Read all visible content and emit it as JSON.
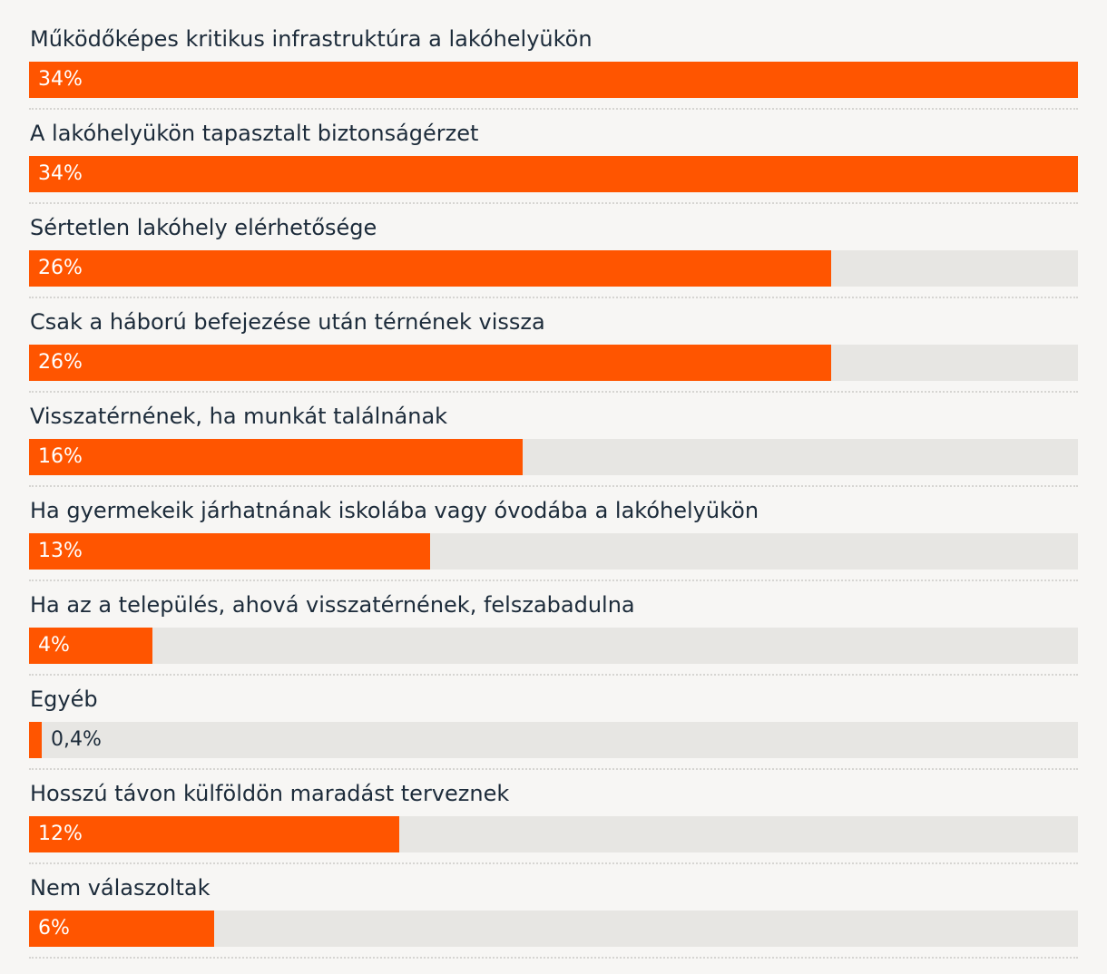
{
  "chart_data": {
    "type": "bar",
    "orientation": "horizontal",
    "categories": [
      "Működőképes kritikus infrastruktúra a lakóhelyükön",
      "A lakóhelyükön tapasztalt biztonságérzet",
      "Sértetlen lakóhely elérhetősége",
      "Csak a háború befejezése után térnének vissza",
      "Visszatérnének, ha munkát találnának",
      "Ha gyermekeik járhatnának iskolába vagy óvodába a lakóhelyükön",
      "Ha az a település, ahová visszatérnének, felszabadulna",
      "Egyéb",
      "Hosszú távon külföldön maradást terveznek",
      "Nem válaszoltak"
    ],
    "values": [
      34,
      34,
      26,
      26,
      16,
      13,
      4,
      0.4,
      12,
      6
    ],
    "value_labels": [
      "34%",
      "34%",
      "26%",
      "26%",
      "16%",
      "13%",
      "4%",
      "0,4%",
      "12%",
      "6%"
    ],
    "xlim": [
      0,
      34
    ],
    "bar_color": "#ff5500",
    "track_color": "#e7e6e3",
    "grid": false
  }
}
